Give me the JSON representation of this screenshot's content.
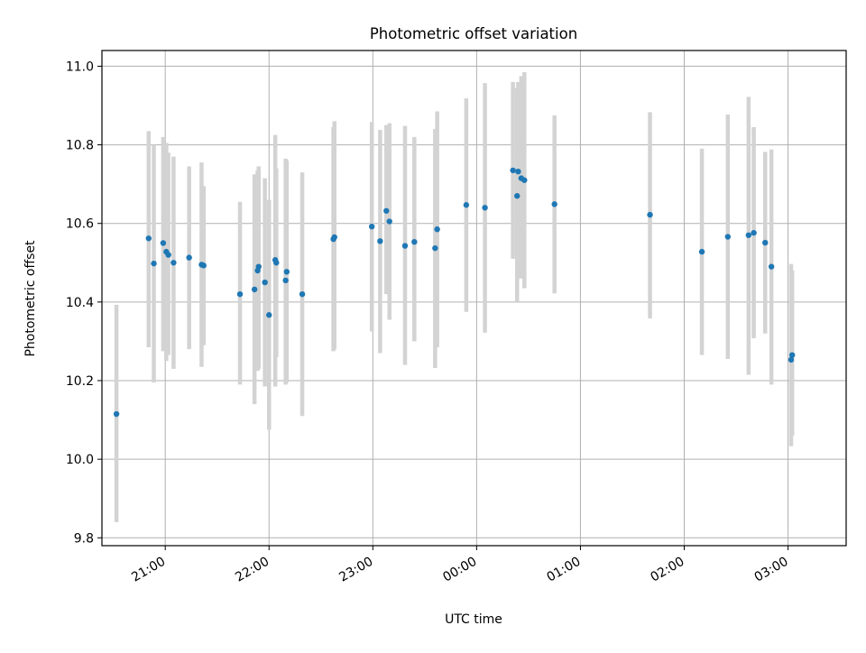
{
  "chart_data": {
    "type": "scatter",
    "title": "Photometric offset variation",
    "xlabel": "UTC time",
    "ylabel": "Photometric offset",
    "x_unit": "UTC clock time, hours after midnight of the first night (values below 24 fall before midnight)",
    "xlim": [
      20.39,
      27.56
    ],
    "ylim": [
      9.78,
      11.04
    ],
    "x_ticks": [
      21,
      22,
      23,
      24,
      25,
      26,
      27
    ],
    "x_tick_labels": [
      "21:00",
      "22:00",
      "23:00",
      "00:00",
      "01:00",
      "02:00",
      "03:00"
    ],
    "y_ticks": [
      9.8,
      10.0,
      10.2,
      10.4,
      10.6,
      10.8,
      11.0
    ],
    "y_tick_labels": [
      "9.8",
      "10.0",
      "10.2",
      "10.4",
      "10.6",
      "10.8",
      "11.0"
    ],
    "grid": true,
    "point_color": "#1f77b4",
    "errorbar_color": "#d3d3d3",
    "series": [
      {
        "x": [
          20.53,
          20.84,
          20.89,
          20.98,
          21.01,
          21.03,
          21.08,
          21.23,
          21.35,
          21.37,
          21.72,
          21.86,
          21.89,
          21.9,
          21.96,
          22.0,
          22.06,
          22.07,
          22.16,
          22.17,
          22.32,
          22.62,
          22.63,
          22.99,
          23.07,
          23.13,
          23.16,
          23.31,
          23.4,
          23.6,
          23.62,
          23.9,
          24.08,
          24.35,
          24.39,
          24.4,
          24.43,
          24.46,
          24.75,
          25.67,
          26.17,
          26.42,
          26.62,
          26.67,
          26.78,
          26.84,
          27.03,
          27.04
        ],
        "y": [
          10.115,
          10.562,
          10.498,
          10.55,
          10.528,
          10.52,
          10.5,
          10.513,
          10.495,
          10.493,
          10.42,
          10.432,
          10.48,
          10.49,
          10.45,
          10.367,
          10.507,
          10.5,
          10.455,
          10.477,
          10.42,
          10.56,
          10.565,
          10.592,
          10.555,
          10.632,
          10.605,
          10.543,
          10.553,
          10.537,
          10.585,
          10.647,
          10.64,
          10.735,
          10.67,
          10.732,
          10.715,
          10.71,
          10.649,
          10.622,
          10.528,
          10.566,
          10.57,
          10.576,
          10.551,
          10.49,
          10.253,
          10.265
        ],
        "low": [
          9.84,
          10.285,
          10.195,
          10.275,
          10.25,
          10.265,
          10.23,
          10.28,
          10.235,
          10.29,
          10.19,
          10.14,
          10.225,
          10.23,
          10.185,
          10.075,
          10.185,
          10.26,
          10.19,
          10.195,
          10.11,
          10.275,
          10.28,
          10.325,
          10.27,
          10.42,
          10.355,
          10.24,
          10.3,
          10.232,
          10.285,
          10.375,
          10.322,
          10.51,
          10.4,
          10.46,
          10.46,
          10.435,
          10.422,
          10.358,
          10.265,
          10.255,
          10.215,
          10.308,
          10.32,
          10.19,
          10.033,
          10.06
        ],
        "high": [
          10.393,
          10.835,
          10.8,
          10.82,
          10.805,
          10.78,
          10.77,
          10.745,
          10.755,
          10.695,
          10.655,
          10.725,
          10.735,
          10.745,
          10.715,
          10.66,
          10.825,
          10.74,
          10.765,
          10.76,
          10.73,
          10.845,
          10.86,
          10.858,
          10.838,
          10.85,
          10.855,
          10.848,
          10.82,
          10.84,
          10.885,
          10.918,
          10.957,
          10.96,
          10.945,
          10.96,
          10.975,
          10.985,
          10.875,
          10.883,
          10.79,
          10.877,
          10.922,
          10.845,
          10.782,
          10.788,
          10.497,
          10.48
        ]
      }
    ]
  }
}
